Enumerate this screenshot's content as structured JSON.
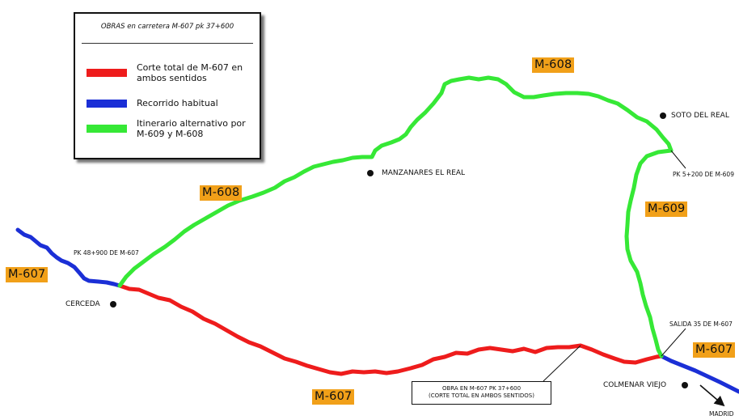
{
  "legend": {
    "title": "OBRAS en carretera M-607 pk 37+600",
    "items": [
      {
        "label": "Corte total de M-607 en ambos sentidos",
        "color": "#ee1c1c"
      },
      {
        "label": "Recorrido habitual",
        "color": "#1b2fd6"
      },
      {
        "label": "Itinerario alternativo por M-609 y M-608",
        "color": "#36e836"
      }
    ]
  },
  "roads": {
    "m608_top": "M-608",
    "m608_left": "M-608",
    "m609": "M-609",
    "m607_left": "M-607",
    "m607_bottom": "M-607",
    "m607_right": "M-607"
  },
  "places": {
    "cerceda": "CERCEDA",
    "manzanares": "MANZANARES EL REAL",
    "soto": "SOTO DEL REAL",
    "colmenar": "COLMENAR VIEJO",
    "madrid": "MADRID"
  },
  "pk": {
    "pk48": "PK 48+900 DE M-607",
    "pk5": "PK 5+200 DE M-609",
    "salida35": "SALIDA 35 DE M-607"
  },
  "callout": {
    "line1": "OBRA EN M-607 PK 37+600",
    "line2": "(CORTE TOTAL EN AMBOS SENTIDOS)"
  },
  "colors": {
    "closed_route": "#ee1c1c",
    "usual_route": "#1b2fd6",
    "alternative_route": "#36e836",
    "road_badge": "#f1a019"
  },
  "icons": {
    "town": "black-dot",
    "direction": "arrow-southeast"
  }
}
